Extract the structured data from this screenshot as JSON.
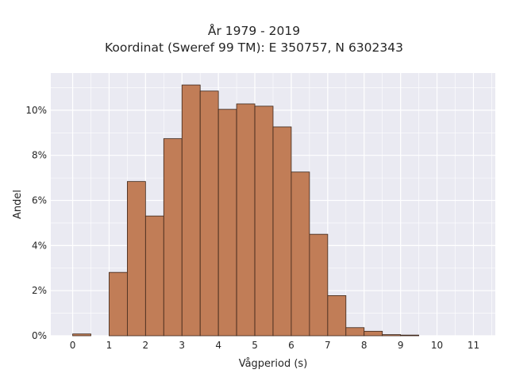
{
  "chart_data": {
    "type": "bar",
    "title": [
      "År 1979 - 2019",
      "Koordinat (Sweref 99 TM): E 350757, N 6302343"
    ],
    "xlabel": "Vågperiod (s)",
    "ylabel": "Andel",
    "bin_width": 0.5,
    "bins": [
      {
        "x0": 0.0,
        "value": 0.0008
      },
      {
        "x0": 1.0,
        "value": 0.0281
      },
      {
        "x0": 1.5,
        "value": 0.0684
      },
      {
        "x0": 2.0,
        "value": 0.0531
      },
      {
        "x0": 2.5,
        "value": 0.0874
      },
      {
        "x0": 3.0,
        "value": 0.1112
      },
      {
        "x0": 3.5,
        "value": 0.1085
      },
      {
        "x0": 4.0,
        "value": 0.1004
      },
      {
        "x0": 4.5,
        "value": 0.1028
      },
      {
        "x0": 5.0,
        "value": 0.1018
      },
      {
        "x0": 5.5,
        "value": 0.0926
      },
      {
        "x0": 6.0,
        "value": 0.0726
      },
      {
        "x0": 6.5,
        "value": 0.045
      },
      {
        "x0": 7.0,
        "value": 0.0178
      },
      {
        "x0": 7.5,
        "value": 0.0036
      },
      {
        "x0": 8.0,
        "value": 0.002
      },
      {
        "x0": 8.5,
        "value": 0.0005
      },
      {
        "x0": 9.0,
        "value": 0.0003
      }
    ],
    "xticks": [
      0,
      1,
      2,
      3,
      4,
      5,
      6,
      7,
      8,
      9,
      10,
      11
    ],
    "yticks": [
      0,
      0.02,
      0.04,
      0.06,
      0.08,
      0.1
    ],
    "ytick_labels": [
      "0%",
      "2%",
      "4%",
      "6%",
      "8%",
      "10%"
    ],
    "xlim": [
      -0.6,
      11.6
    ],
    "ylim": [
      0,
      0.1165
    ],
    "bar_color": "#c17d57",
    "bar_edge_color": "#3a2418",
    "plot_background": "#eaeaf2",
    "grid": true,
    "grid_color": "#ffffff"
  }
}
